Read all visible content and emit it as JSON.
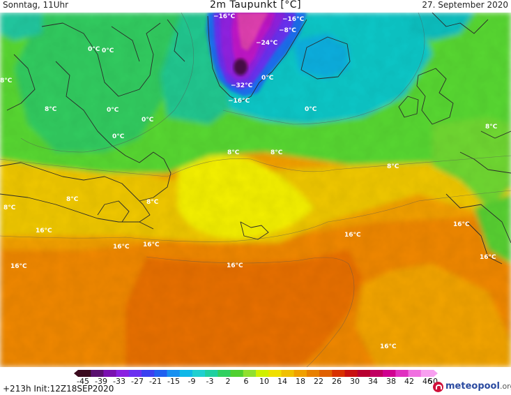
{
  "header": {
    "valid_day": "Sonntag, 11Uhr",
    "title": "2m Taupunkt [°C]",
    "valid_date": "27. September 2020"
  },
  "colorbar": {
    "tick_labels": [
      "-45",
      "-39",
      "-33",
      "-27",
      "-21",
      "-15",
      "-9",
      "-3",
      "2",
      "6",
      "10",
      "14",
      "18",
      "22",
      "26",
      "30",
      "34",
      "38",
      "42",
      "46",
      "50"
    ],
    "colors": [
      "#3a0a1e",
      "#5a1070",
      "#7a10b0",
      "#8a20e0",
      "#6a30f0",
      "#3a40f0",
      "#2060f0",
      "#1890f0",
      "#10b8e8",
      "#20d0d0",
      "#20d0a0",
      "#30d060",
      "#50d030",
      "#90e030",
      "#d0f000",
      "#f0e000",
      "#f0c000",
      "#f0a000",
      "#e88000",
      "#e06000",
      "#d83000",
      "#c81010",
      "#b80030",
      "#c00060",
      "#d00090",
      "#e030c0",
      "#f070e0",
      "#f8a0f0"
    ]
  },
  "map": {
    "contour_labels": [
      {
        "text": "−16°C"
      },
      {
        "text": "−16°C"
      },
      {
        "text": "−8°C"
      },
      {
        "text": "−24°C"
      },
      {
        "text": "−32°C"
      },
      {
        "text": "−16°C"
      },
      {
        "text": "0°C"
      },
      {
        "text": "0°C"
      },
      {
        "text": "0°C"
      },
      {
        "text": "0°C"
      },
      {
        "text": "0°C"
      },
      {
        "text": "0°C"
      },
      {
        "text": "0°C"
      },
      {
        "text": "8°C"
      },
      {
        "text": "8°C"
      },
      {
        "text": "8°C"
      },
      {
        "text": "8°C"
      },
      {
        "text": "8°C"
      },
      {
        "text": "8°C"
      },
      {
        "text": "8°C"
      },
      {
        "text": "8°C"
      },
      {
        "text": "8°C"
      },
      {
        "text": "16°C"
      },
      {
        "text": "16°C"
      },
      {
        "text": "16°C"
      },
      {
        "text": "16°C"
      },
      {
        "text": "16°C"
      },
      {
        "text": "16°C"
      },
      {
        "text": "16°C"
      },
      {
        "text": "16°C"
      },
      {
        "text": "16°C"
      }
    ]
  },
  "footer": {
    "run_info": "+213h  Init:12Z18SEP2020",
    "logo_name": "meteopool",
    "logo_domain": ".org"
  }
}
